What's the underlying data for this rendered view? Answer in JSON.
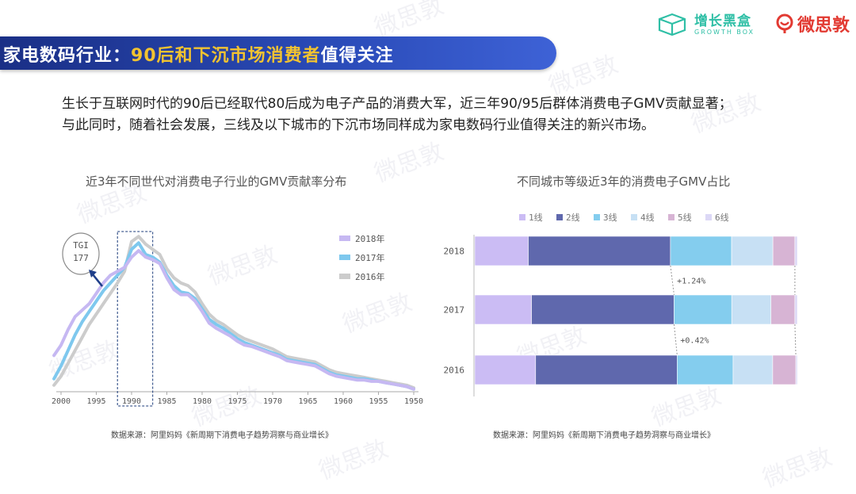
{
  "header": {
    "title_main": "家电数码行业：",
    "title_highlight": "90后和下沉市场消费者",
    "title_tail": "值得关注"
  },
  "logos": {
    "brand1_cn": "增长黑盒",
    "brand1_en": "GROWTH BOX",
    "brand2": "微思敦"
  },
  "watermark": "微思敦",
  "intro": {
    "line1": "生长于互联网时代的90后已经取代80后成为电子产品的消费大军，近三年90/95后群体消费电子GMV贡献显著；",
    "line2": "与此同时，随着社会发展，三线及以下城市的下沉市场同样成为家电数码行业值得关注的新兴市场。"
  },
  "left_chart": {
    "title": "近3年不同世代对消费电子行业的GMV贡献率分布",
    "source": "数据来源：阿里妈妈《新周期下消费电子趋势洞察与商业增长》",
    "tgi_label": "TGI",
    "tgi_value": "177"
  },
  "right_chart": {
    "title": "不同城市等级近3年的消费电子GMV占比",
    "source": "数据来源：阿里妈妈《新周期下消费电子趋势洞察与商业增长》",
    "annotations": [
      "+1.24%",
      "+0.42%"
    ]
  },
  "chart_data": [
    {
      "type": "line",
      "x_ticks": [
        "2000",
        "1995",
        "1990",
        "1985",
        "1980",
        "1975",
        "1970",
        "1965",
        "1960",
        "1955",
        "1950"
      ],
      "x_reversed": true,
      "x": [
        2001,
        2000,
        1999,
        1998,
        1997,
        1996,
        1995,
        1994,
        1993,
        1992,
        1991,
        1990,
        1989,
        1988,
        1987,
        1986,
        1985,
        1984,
        1983,
        1982,
        1981,
        1980,
        1979,
        1978,
        1977,
        1976,
        1975,
        1974,
        1973,
        1972,
        1971,
        1970,
        1969,
        1968,
        1967,
        1966,
        1965,
        1964,
        1963,
        1962,
        1961,
        1960,
        1959,
        1958,
        1957,
        1956,
        1955,
        1954,
        1953,
        1952,
        1951,
        1950
      ],
      "highlight_range": [
        1992,
        1987
      ],
      "grid": false,
      "legend_position": "top-right",
      "series": [
        {
          "name": "2018年",
          "color": "#c6b8f2",
          "values": [
            28,
            36,
            48,
            58,
            63,
            68,
            76,
            84,
            90,
            93,
            96,
            104,
            109,
            104,
            102,
            99,
            88,
            79,
            75,
            75,
            70,
            62,
            53,
            49,
            46,
            43,
            39,
            36,
            35,
            33,
            31,
            29,
            27,
            24,
            23,
            22,
            21,
            20,
            17,
            14,
            12,
            11,
            10,
            9,
            9,
            8,
            8,
            7,
            6,
            5,
            4,
            2
          ]
        },
        {
          "name": "2017年",
          "color": "#7ec8ee",
          "values": [
            10,
            20,
            32,
            44,
            54,
            62,
            70,
            78,
            84,
            90,
            96,
            110,
            115,
            106,
            104,
            100,
            90,
            82,
            77,
            76,
            72,
            64,
            56,
            52,
            49,
            45,
            41,
            38,
            36,
            34,
            32,
            30,
            28,
            25,
            24,
            23,
            22,
            21,
            18,
            15,
            13,
            12,
            11,
            10,
            10,
            9,
            8,
            7,
            6,
            5,
            4,
            2
          ]
        },
        {
          "name": "2016年",
          "color": "#cccccc",
          "values": [
            5,
            12,
            22,
            32,
            42,
            52,
            60,
            68,
            76,
            84,
            93,
            116,
            120,
            114,
            110,
            106,
            95,
            88,
            84,
            82,
            77,
            68,
            60,
            55,
            52,
            48,
            44,
            41,
            39,
            37,
            35,
            33,
            30,
            27,
            26,
            25,
            24,
            23,
            20,
            17,
            15,
            14,
            13,
            12,
            11,
            10,
            9,
            8,
            7,
            6,
            5,
            3
          ]
        }
      ]
    },
    {
      "type": "bar",
      "stacked": true,
      "horizontal": true,
      "categories": [
        "2018",
        "2017",
        "2016"
      ],
      "legend_position": "top",
      "series": [
        {
          "name": "1线",
          "color": "#cbbcf4",
          "values": [
            17.5,
            18.5,
            20
          ]
        },
        {
          "name": "2线",
          "color": "#5f68ad",
          "values": [
            46.5,
            46.5,
            46.5
          ]
        },
        {
          "name": "3线",
          "color": "#84cdee",
          "values": [
            20,
            18.8,
            18.4
          ]
        },
        {
          "name": "4线",
          "color": "#c7e0f4",
          "values": [
            13.5,
            12.8,
            13
          ]
        },
        {
          "name": "5线",
          "color": "#d7b4d4",
          "values": [
            7.2,
            7.8,
            7.6
          ]
        },
        {
          "name": "6线",
          "color": "#dcd8f6",
          "values": [
            0.8,
            0.8,
            0.5
          ]
        }
      ]
    }
  ]
}
